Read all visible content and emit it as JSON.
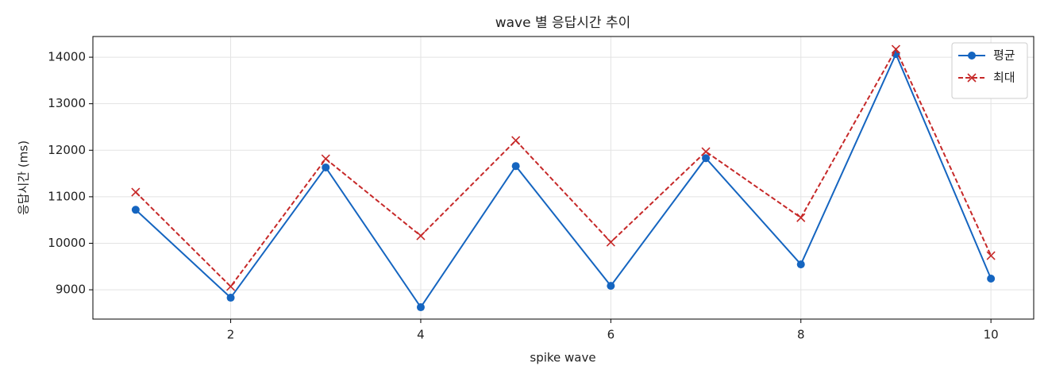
{
  "chart_data": {
    "type": "line",
    "title": "wave 별 응답시간 추이",
    "x_label": "spike wave",
    "y_label": "응답시간 (ms)",
    "x": [
      1,
      2,
      3,
      4,
      5,
      6,
      7,
      8,
      9,
      10
    ],
    "series": [
      {
        "name": "평균",
        "color": "#1565c0",
        "marker": "circle",
        "dash": "solid",
        "values": [
          10720,
          8830,
          11630,
          8625,
          11660,
          9085,
          11830,
          9546,
          14068,
          9240
        ]
      },
      {
        "name": "최대",
        "color": "#c62828",
        "marker": "x",
        "dash": "dashed",
        "values": [
          11100,
          9070,
          11815,
          10160,
          12210,
          10025,
          11970,
          10550,
          14170,
          9735
        ]
      }
    ],
    "xlim": [
      0.55,
      10.45
    ],
    "xticks": [
      2,
      4,
      6,
      8,
      10
    ],
    "ylim": [
      8370,
      14445
    ],
    "yticks": [
      9000,
      10000,
      11000,
      12000,
      13000,
      14000
    ],
    "grid": true,
    "legend": "upper right"
  }
}
